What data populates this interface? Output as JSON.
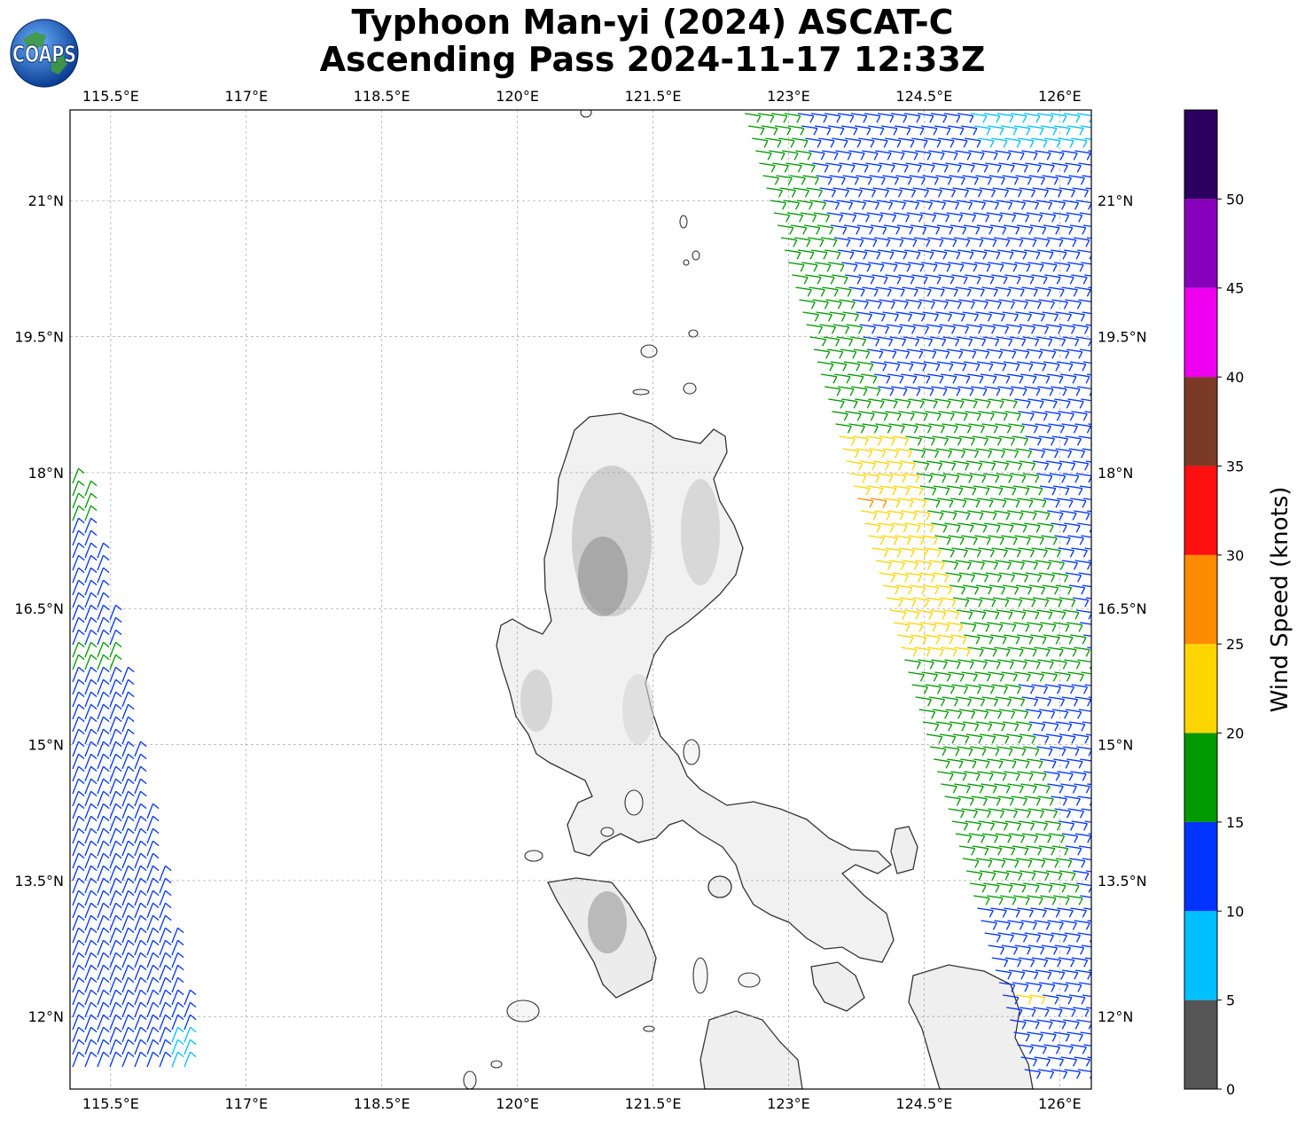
{
  "title": {
    "line1": "Typhoon Man-yi (2024) ASCAT-C",
    "line2": "Ascending Pass 2024-11-17 12:33Z"
  },
  "logo": {
    "text": "COAPS",
    "icon": "globe-logo-icon"
  },
  "map": {
    "extent": {
      "lon_min": 115.05,
      "lon_max": 126.35,
      "lat_min": 11.2,
      "lat_max": 22.0
    },
    "gridlines": true,
    "lon_ticks": [
      115.5,
      117,
      118.5,
      120,
      121.5,
      123,
      124.5,
      126
    ],
    "lon_labels": [
      "115.5°E",
      "117°E",
      "118.5°E",
      "120°E",
      "121.5°E",
      "123°E",
      "124.5°E",
      "126°E"
    ],
    "lat_ticks": [
      21,
      19.5,
      18,
      16.5,
      15,
      13.5,
      12
    ],
    "lat_labels": [
      "21°N",
      "19.5°N",
      "18°N",
      "16.5°N",
      "15°N",
      "13.5°N",
      "12°N"
    ]
  },
  "colorbar": {
    "title": "Wind Speed (knots)",
    "levels": [
      0,
      5,
      10,
      15,
      20,
      25,
      30,
      35,
      40,
      45,
      50,
      55
    ],
    "labels": [
      "0",
      "5",
      "10",
      "15",
      "20",
      "25",
      "30",
      "35",
      "40",
      "45",
      "50"
    ],
    "colors": [
      "#555555",
      "#00bfff",
      "#0033ff",
      "#009900",
      "#ffd500",
      "#ff8c00",
      "#ff1010",
      "#7b3a26",
      "#ee00ee",
      "#8800bb",
      "#2b0060"
    ]
  }
}
